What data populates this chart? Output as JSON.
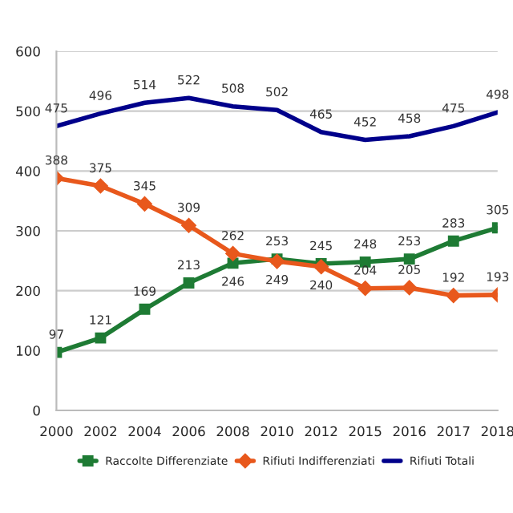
{
  "chart_data": {
    "type": "line",
    "categories": [
      "2000",
      "2002",
      "2004",
      "2006",
      "2008",
      "2010",
      "2012",
      "2015",
      "2016",
      "2017",
      "2018"
    ],
    "series": [
      {
        "name": "Raccolte Differenziate",
        "color": "#1e7b34",
        "marker": "square",
        "values": [
          97,
          121,
          169,
          213,
          246,
          253,
          245,
          248,
          253,
          283,
          305
        ]
      },
      {
        "name": "Rifiuti Indifferenziati",
        "color": "#e8581c",
        "marker": "diamond",
        "values": [
          388,
          375,
          345,
          309,
          262,
          249,
          240,
          204,
          205,
          192,
          193
        ]
      },
      {
        "name": "Rifiuti Totali",
        "color": "#00008b",
        "marker": "none",
        "values": [
          475,
          496,
          514,
          522,
          508,
          502,
          465,
          452,
          458,
          475,
          498
        ]
      }
    ],
    "ylim": [
      0,
      600
    ],
    "yticks": [
      0,
      100,
      200,
      300,
      400,
      500,
      600
    ],
    "grid": "y",
    "legend": "bottom",
    "data_labels": true
  }
}
